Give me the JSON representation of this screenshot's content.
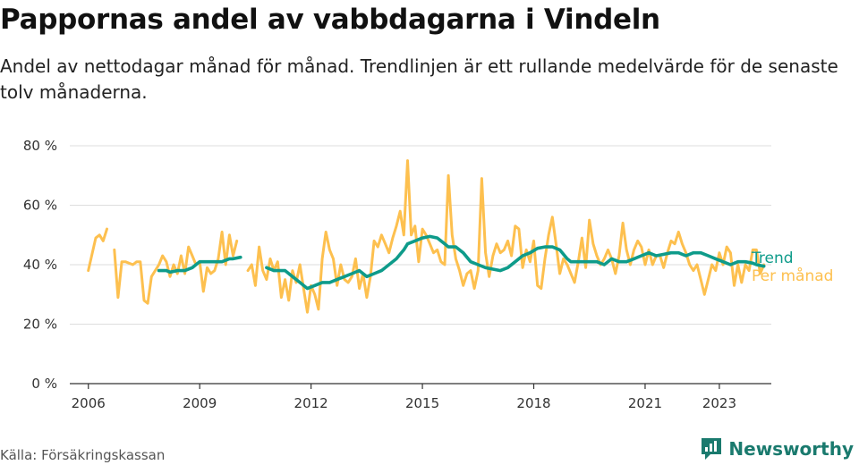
{
  "chart_data": {
    "type": "line",
    "title": "Pappornas andel av vabbdagarna i Vindeln",
    "subtitle": "Andel av nettodagar månad för månad. Trendlinjen är ett rullande medelvärde för de senaste tolv månaderna.",
    "xlabel": "",
    "ylabel": "",
    "x_ticks": [
      "2006",
      "2009",
      "2012",
      "2015",
      "2018",
      "2021",
      "2023"
    ],
    "y_ticks": [
      "0 %",
      "20 %",
      "40 %",
      "60 %",
      "80 %"
    ],
    "ylim": [
      0,
      80
    ],
    "xlim": [
      2005.5,
      2024.4
    ],
    "grid": true,
    "series": [
      {
        "name": "Per månad",
        "color": "#fdc04f",
        "points": [
          [
            2006.0,
            38
          ],
          [
            2006.2,
            49
          ],
          [
            2006.3,
            50
          ],
          [
            2006.4,
            48
          ],
          [
            2006.5,
            52
          ],
          null,
          [
            2006.7,
            45
          ],
          [
            2006.8,
            29
          ],
          [
            2006.9,
            41
          ],
          [
            2007.0,
            41
          ],
          [
            2007.2,
            40
          ],
          [
            2007.3,
            41
          ],
          [
            2007.4,
            41
          ],
          [
            2007.5,
            28
          ],
          [
            2007.6,
            27
          ],
          [
            2007.7,
            36
          ],
          [
            2007.9,
            40
          ],
          [
            2008.0,
            43
          ],
          [
            2008.1,
            41
          ],
          [
            2008.2,
            36
          ],
          [
            2008.3,
            40
          ],
          [
            2008.4,
            37
          ],
          [
            2008.5,
            43
          ],
          [
            2008.6,
            37
          ],
          [
            2008.7,
            46
          ],
          [
            2008.8,
            43
          ],
          [
            2008.9,
            40
          ],
          [
            2009.0,
            41
          ],
          [
            2009.1,
            31
          ],
          [
            2009.2,
            39
          ],
          [
            2009.3,
            37
          ],
          [
            2009.4,
            38
          ],
          [
            2009.5,
            42
          ],
          [
            2009.6,
            51
          ],
          [
            2009.7,
            40
          ],
          [
            2009.8,
            50
          ],
          [
            2009.9,
            43
          ],
          [
            2010.0,
            48
          ],
          null,
          [
            2010.3,
            38
          ],
          [
            2010.4,
            40
          ],
          [
            2010.5,
            33
          ],
          [
            2010.6,
            46
          ],
          [
            2010.7,
            38
          ],
          [
            2010.8,
            35
          ],
          [
            2010.9,
            42
          ],
          [
            2011.0,
            38
          ],
          [
            2011.1,
            41
          ],
          [
            2011.2,
            29
          ],
          [
            2011.3,
            35
          ],
          [
            2011.4,
            28
          ],
          [
            2011.5,
            38
          ],
          [
            2011.6,
            34
          ],
          [
            2011.7,
            40
          ],
          [
            2011.8,
            32
          ],
          [
            2011.9,
            24
          ],
          [
            2012.0,
            33
          ],
          [
            2012.1,
            30
          ],
          [
            2012.2,
            25
          ],
          [
            2012.3,
            42
          ],
          [
            2012.4,
            51
          ],
          [
            2012.5,
            45
          ],
          [
            2012.6,
            42
          ],
          [
            2012.7,
            33
          ],
          [
            2012.8,
            40
          ],
          [
            2012.9,
            35
          ],
          [
            2013.0,
            34
          ],
          [
            2013.1,
            36
          ],
          [
            2013.2,
            42
          ],
          [
            2013.3,
            32
          ],
          [
            2013.4,
            37
          ],
          [
            2013.5,
            29
          ],
          [
            2013.6,
            36
          ],
          [
            2013.7,
            48
          ],
          [
            2013.8,
            46
          ],
          [
            2013.9,
            50
          ],
          [
            2014.0,
            47
          ],
          [
            2014.1,
            44
          ],
          [
            2014.2,
            49
          ],
          [
            2014.3,
            53
          ],
          [
            2014.4,
            58
          ],
          [
            2014.5,
            50
          ],
          [
            2014.6,
            75
          ],
          [
            2014.7,
            50
          ],
          [
            2014.8,
            53
          ],
          [
            2014.9,
            41
          ],
          [
            2015.0,
            52
          ],
          [
            2015.1,
            50
          ],
          [
            2015.2,
            47
          ],
          [
            2015.3,
            44
          ],
          [
            2015.4,
            45
          ],
          [
            2015.5,
            41
          ],
          [
            2015.6,
            40
          ],
          [
            2015.7,
            70
          ],
          [
            2015.8,
            50
          ],
          [
            2015.9,
            42
          ],
          [
            2016.0,
            38
          ],
          [
            2016.1,
            33
          ],
          [
            2016.2,
            37
          ],
          [
            2016.3,
            38
          ],
          [
            2016.4,
            32
          ],
          [
            2016.5,
            38
          ],
          [
            2016.6,
            69
          ],
          [
            2016.7,
            44
          ],
          [
            2016.8,
            36
          ],
          [
            2016.9,
            43
          ],
          [
            2017.0,
            47
          ],
          [
            2017.1,
            44
          ],
          [
            2017.2,
            45
          ],
          [
            2017.3,
            48
          ],
          [
            2017.4,
            43
          ],
          [
            2017.5,
            53
          ],
          [
            2017.6,
            52
          ],
          [
            2017.7,
            39
          ],
          [
            2017.8,
            45
          ],
          [
            2017.9,
            41
          ],
          [
            2018.0,
            48
          ],
          [
            2018.1,
            33
          ],
          [
            2018.2,
            32
          ],
          [
            2018.3,
            42
          ],
          [
            2018.4,
            50
          ],
          [
            2018.5,
            56
          ],
          [
            2018.6,
            47
          ],
          [
            2018.7,
            37
          ],
          [
            2018.8,
            42
          ],
          [
            2018.9,
            40
          ],
          [
            2019.0,
            37
          ],
          [
            2019.1,
            34
          ],
          [
            2019.2,
            41
          ],
          [
            2019.3,
            49
          ],
          [
            2019.4,
            39
          ],
          [
            2019.5,
            55
          ],
          [
            2019.6,
            47
          ],
          [
            2019.7,
            43
          ],
          [
            2019.8,
            40
          ],
          [
            2019.9,
            42
          ],
          [
            2020.0,
            45
          ],
          [
            2020.1,
            42
          ],
          [
            2020.2,
            37
          ],
          [
            2020.3,
            43
          ],
          [
            2020.4,
            54
          ],
          [
            2020.5,
            45
          ],
          [
            2020.6,
            40
          ],
          [
            2020.7,
            45
          ],
          [
            2020.8,
            48
          ],
          [
            2020.9,
            46
          ],
          [
            2021.0,
            40
          ],
          [
            2021.1,
            45
          ],
          [
            2021.2,
            40
          ],
          [
            2021.3,
            43
          ],
          [
            2021.4,
            43
          ],
          [
            2021.5,
            39
          ],
          [
            2021.6,
            44
          ],
          [
            2021.7,
            48
          ],
          [
            2021.8,
            47
          ],
          [
            2021.9,
            51
          ],
          [
            2022.0,
            47
          ],
          [
            2022.1,
            44
          ],
          [
            2022.2,
            40
          ],
          [
            2022.3,
            38
          ],
          [
            2022.4,
            40
          ],
          [
            2022.5,
            35
          ],
          [
            2022.6,
            30
          ],
          [
            2022.7,
            35
          ],
          [
            2022.8,
            40
          ],
          [
            2022.9,
            38
          ],
          [
            2023.0,
            44
          ],
          [
            2023.1,
            40
          ],
          [
            2023.2,
            46
          ],
          [
            2023.3,
            44
          ],
          [
            2023.4,
            33
          ],
          [
            2023.5,
            40
          ],
          [
            2023.6,
            34
          ],
          [
            2023.7,
            40
          ],
          [
            2023.8,
            38
          ],
          [
            2023.9,
            45
          ],
          [
            2024.0,
            45
          ],
          [
            2024.1,
            37
          ],
          [
            2024.2,
            40
          ]
        ]
      },
      {
        "name": "Trend",
        "color": "#0e9b8a",
        "points": [
          [
            2007.9,
            38
          ],
          [
            2008.1,
            38
          ],
          [
            2008.2,
            37.5
          ],
          [
            2008.4,
            38
          ],
          [
            2008.6,
            38
          ],
          [
            2008.8,
            39
          ],
          [
            2008.9,
            40
          ],
          [
            2009.0,
            41
          ],
          [
            2009.2,
            41
          ],
          [
            2009.4,
            41
          ],
          [
            2009.6,
            41
          ],
          [
            2009.8,
            42
          ],
          [
            2009.9,
            42
          ],
          [
            2010.1,
            42.5
          ],
          null,
          [
            2010.8,
            39
          ],
          [
            2011.0,
            38
          ],
          [
            2011.3,
            38
          ],
          [
            2011.5,
            36
          ],
          [
            2011.7,
            34
          ],
          [
            2011.9,
            32
          ],
          [
            2012.1,
            33
          ],
          [
            2012.3,
            34
          ],
          [
            2012.5,
            34
          ],
          [
            2012.7,
            35
          ],
          [
            2012.9,
            36
          ],
          [
            2013.1,
            37
          ],
          [
            2013.3,
            38
          ],
          [
            2013.5,
            36
          ],
          [
            2013.7,
            37
          ],
          [
            2013.9,
            38
          ],
          [
            2014.1,
            40
          ],
          [
            2014.3,
            42
          ],
          [
            2014.5,
            45
          ],
          [
            2014.6,
            47
          ],
          [
            2014.8,
            48
          ],
          [
            2015.0,
            49
          ],
          [
            2015.2,
            49.5
          ],
          [
            2015.4,
            49
          ],
          [
            2015.6,
            47
          ],
          [
            2015.7,
            46
          ],
          [
            2015.9,
            46
          ],
          [
            2016.1,
            44
          ],
          [
            2016.3,
            41
          ],
          [
            2016.5,
            40
          ],
          [
            2016.7,
            39
          ],
          [
            2016.9,
            38.5
          ],
          [
            2017.1,
            38
          ],
          [
            2017.3,
            39
          ],
          [
            2017.5,
            41
          ],
          [
            2017.7,
            43
          ],
          [
            2017.9,
            44
          ],
          [
            2018.1,
            45.5
          ],
          [
            2018.3,
            46
          ],
          [
            2018.5,
            46
          ],
          [
            2018.7,
            45
          ],
          [
            2018.9,
            42
          ],
          [
            2019.0,
            41
          ],
          [
            2019.3,
            41
          ],
          [
            2019.5,
            41
          ],
          [
            2019.7,
            41
          ],
          [
            2019.9,
            40
          ],
          [
            2020.1,
            42
          ],
          [
            2020.3,
            41
          ],
          [
            2020.5,
            41
          ],
          [
            2020.7,
            42
          ],
          [
            2020.9,
            43
          ],
          [
            2021.1,
            44
          ],
          [
            2021.3,
            43
          ],
          [
            2021.5,
            43.5
          ],
          [
            2021.7,
            44
          ],
          [
            2021.9,
            44
          ],
          [
            2022.1,
            43
          ],
          [
            2022.3,
            44
          ],
          [
            2022.5,
            44
          ],
          [
            2022.7,
            43
          ],
          [
            2022.9,
            42
          ],
          [
            2023.1,
            41
          ],
          [
            2023.3,
            40
          ],
          [
            2023.5,
            41
          ],
          [
            2023.7,
            41
          ],
          [
            2023.9,
            40.5
          ],
          [
            2024.0,
            40
          ],
          [
            2024.2,
            39.5
          ]
        ]
      }
    ],
    "legend_placement": "right, at line ends"
  },
  "footer": {
    "source": "Källa: Försäkringskassan",
    "brand": "Newsworthy",
    "brand_color": "#1a7a6e"
  }
}
